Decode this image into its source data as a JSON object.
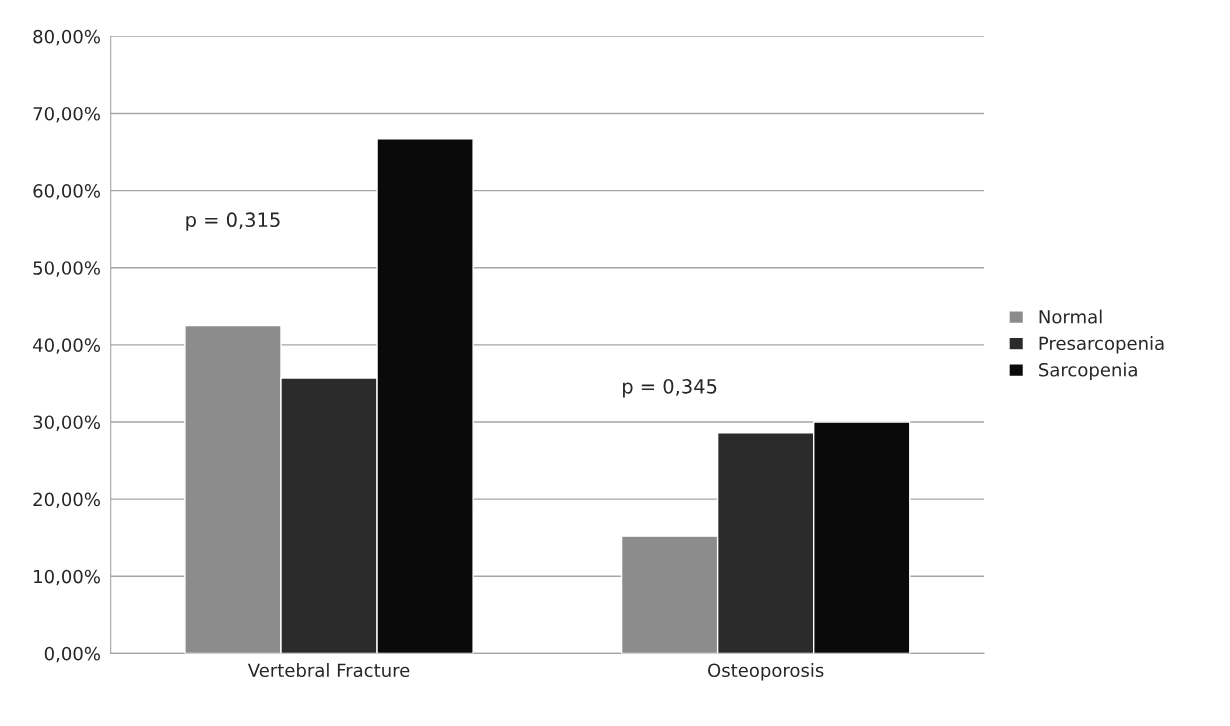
{
  "chart_data": {
    "type": "bar",
    "categories": [
      "Vertebral Fracture",
      "Osteoporosis"
    ],
    "series": [
      {
        "name": "Normal",
        "color": "#8c8c8c",
        "values": [
          42.5,
          15.2
        ]
      },
      {
        "name": "Presarcopenia",
        "color": "#2b2b2b",
        "values": [
          35.7,
          28.6
        ]
      },
      {
        "name": "Sarcopenia",
        "color": "#0a0a0a",
        "values": [
          66.7,
          30.0
        ]
      }
    ],
    "ylim": [
      0,
      80
    ],
    "yticks": [
      {
        "value": 0,
        "label": "0,00%"
      },
      {
        "value": 10,
        "label": "10,00%"
      },
      {
        "value": 20,
        "label": "20,00%"
      },
      {
        "value": 30,
        "label": "30,00%"
      },
      {
        "value": 40,
        "label": "40,00%"
      },
      {
        "value": 50,
        "label": "50,00%"
      },
      {
        "value": 60,
        "label": "60,00%"
      },
      {
        "value": 70,
        "label": "70,00%"
      },
      {
        "value": 80,
        "label": "80,00%"
      }
    ],
    "annotations": [
      "p = 0,315",
      "p = 0,345"
    ],
    "grid": "y",
    "legend": "right"
  }
}
